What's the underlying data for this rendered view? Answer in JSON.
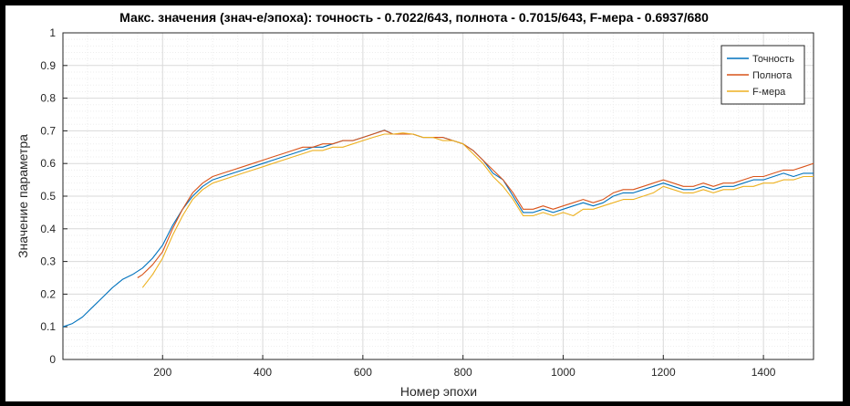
{
  "chart_data": {
    "type": "line",
    "title": "Макс. значения (знач-е/эпоха): точность - 0.7022/643, полнота - 0.7015/643, F-мера - 0.6937/680",
    "xlabel": "Номер эпохи",
    "ylabel": "Значение параметра",
    "xlim": [
      1,
      1500
    ],
    "ylim": [
      0,
      1
    ],
    "xticks": [
      200,
      400,
      600,
      800,
      1000,
      1200,
      1400
    ],
    "yticks": [
      0,
      0.1,
      0.2,
      0.3,
      0.4,
      0.5,
      0.6,
      0.7,
      0.8,
      0.9,
      1
    ],
    "grid": true,
    "minor_grid": true,
    "legend_position": "top-right",
    "series": [
      {
        "name": "Точность",
        "color": "#0072BD",
        "x": [
          1,
          20,
          40,
          60,
          80,
          100,
          120,
          140,
          160,
          180,
          200,
          220,
          240,
          260,
          280,
          300,
          320,
          340,
          360,
          380,
          400,
          420,
          440,
          460,
          480,
          500,
          520,
          540,
          560,
          580,
          600,
          620,
          643,
          660,
          680,
          700,
          720,
          740,
          760,
          780,
          800,
          820,
          840,
          860,
          880,
          900,
          920,
          940,
          960,
          980,
          1000,
          1020,
          1040,
          1060,
          1080,
          1100,
          1120,
          1140,
          1160,
          1180,
          1200,
          1220,
          1240,
          1260,
          1280,
          1300,
          1320,
          1340,
          1360,
          1380,
          1400,
          1420,
          1440,
          1460,
          1480,
          1500
        ],
        "values": [
          0.1,
          0.11,
          0.13,
          0.16,
          0.19,
          0.22,
          0.245,
          0.26,
          0.28,
          0.31,
          0.35,
          0.41,
          0.46,
          0.5,
          0.53,
          0.55,
          0.56,
          0.57,
          0.58,
          0.59,
          0.6,
          0.61,
          0.62,
          0.63,
          0.64,
          0.65,
          0.65,
          0.66,
          0.67,
          0.67,
          0.68,
          0.69,
          0.7022,
          0.69,
          0.69,
          0.69,
          0.68,
          0.68,
          0.68,
          0.67,
          0.66,
          0.64,
          0.61,
          0.57,
          0.55,
          0.5,
          0.45,
          0.45,
          0.46,
          0.45,
          0.46,
          0.47,
          0.48,
          0.47,
          0.48,
          0.5,
          0.51,
          0.51,
          0.52,
          0.53,
          0.54,
          0.53,
          0.52,
          0.52,
          0.53,
          0.52,
          0.53,
          0.53,
          0.54,
          0.55,
          0.55,
          0.56,
          0.57,
          0.56,
          0.57,
          0.57
        ]
      },
      {
        "name": "Полнота",
        "color": "#D95319",
        "x": [
          150,
          160,
          180,
          200,
          220,
          240,
          260,
          280,
          300,
          320,
          340,
          360,
          380,
          400,
          420,
          440,
          460,
          480,
          500,
          520,
          540,
          560,
          580,
          600,
          620,
          643,
          660,
          680,
          700,
          720,
          740,
          760,
          780,
          800,
          820,
          840,
          860,
          880,
          900,
          920,
          940,
          960,
          980,
          1000,
          1020,
          1040,
          1060,
          1080,
          1100,
          1120,
          1140,
          1160,
          1180,
          1200,
          1220,
          1240,
          1260,
          1280,
          1300,
          1320,
          1340,
          1360,
          1380,
          1400,
          1420,
          1440,
          1460,
          1480,
          1500
        ],
        "values": [
          0.25,
          0.26,
          0.29,
          0.33,
          0.4,
          0.46,
          0.51,
          0.54,
          0.56,
          0.57,
          0.58,
          0.59,
          0.6,
          0.61,
          0.62,
          0.63,
          0.64,
          0.65,
          0.65,
          0.66,
          0.66,
          0.67,
          0.67,
          0.68,
          0.69,
          0.7015,
          0.69,
          0.69,
          0.69,
          0.68,
          0.68,
          0.68,
          0.67,
          0.66,
          0.64,
          0.61,
          0.58,
          0.55,
          0.51,
          0.46,
          0.46,
          0.47,
          0.46,
          0.47,
          0.48,
          0.49,
          0.48,
          0.49,
          0.51,
          0.52,
          0.52,
          0.53,
          0.54,
          0.55,
          0.54,
          0.53,
          0.53,
          0.54,
          0.53,
          0.54,
          0.54,
          0.55,
          0.56,
          0.56,
          0.57,
          0.58,
          0.58,
          0.59,
          0.6
        ]
      },
      {
        "name": "F-мера",
        "color": "#EDB120",
        "x": [
          160,
          180,
          200,
          220,
          240,
          260,
          280,
          300,
          320,
          340,
          360,
          380,
          400,
          420,
          440,
          460,
          480,
          500,
          520,
          540,
          560,
          580,
          600,
          620,
          643,
          660,
          680,
          700,
          720,
          740,
          760,
          780,
          800,
          820,
          840,
          860,
          880,
          900,
          920,
          940,
          960,
          980,
          1000,
          1020,
          1040,
          1060,
          1080,
          1100,
          1120,
          1140,
          1160,
          1180,
          1200,
          1220,
          1240,
          1260,
          1280,
          1300,
          1320,
          1340,
          1360,
          1380,
          1400,
          1420,
          1440,
          1460,
          1480,
          1500
        ],
        "values": [
          0.22,
          0.26,
          0.31,
          0.38,
          0.44,
          0.49,
          0.52,
          0.54,
          0.55,
          0.56,
          0.57,
          0.58,
          0.59,
          0.6,
          0.61,
          0.62,
          0.63,
          0.64,
          0.64,
          0.65,
          0.65,
          0.66,
          0.67,
          0.68,
          0.69,
          0.69,
          0.6937,
          0.69,
          0.68,
          0.68,
          0.67,
          0.67,
          0.66,
          0.63,
          0.6,
          0.56,
          0.53,
          0.49,
          0.44,
          0.44,
          0.45,
          0.44,
          0.45,
          0.44,
          0.46,
          0.46,
          0.47,
          0.48,
          0.49,
          0.49,
          0.5,
          0.51,
          0.53,
          0.52,
          0.51,
          0.51,
          0.52,
          0.51,
          0.52,
          0.52,
          0.53,
          0.53,
          0.54,
          0.54,
          0.55,
          0.55,
          0.56,
          0.56
        ]
      }
    ]
  }
}
